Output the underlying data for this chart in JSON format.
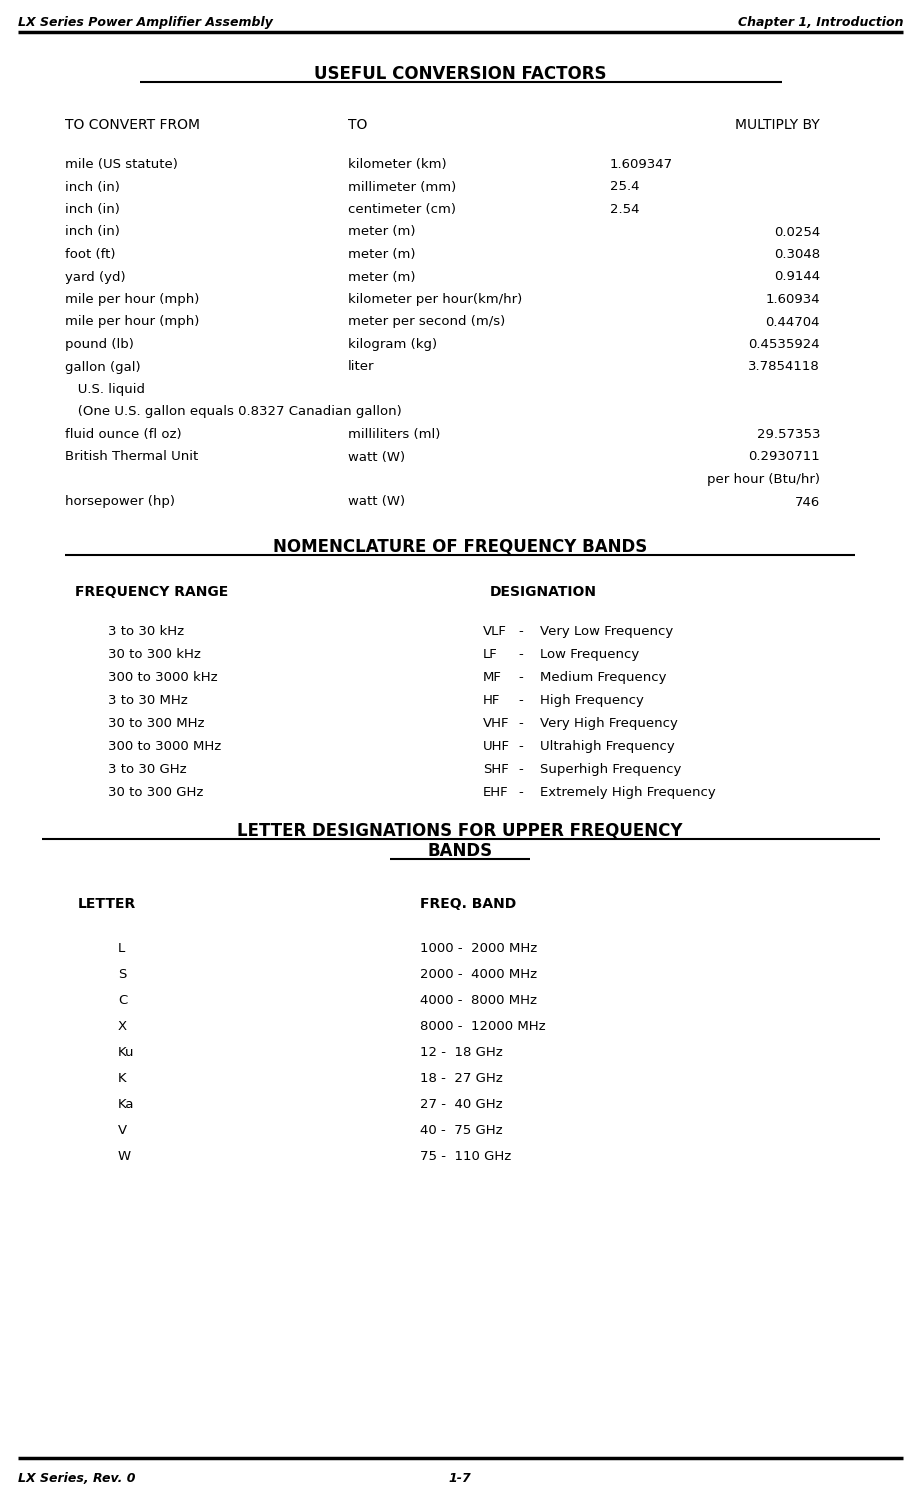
{
  "header_left": "LX Series Power Amplifier Assembly",
  "header_right": "Chapter 1, Introduction",
  "footer_left": "LX Series, Rev. 0",
  "footer_center": "1-7",
  "title1": "USEFUL CONVERSION FACTORS",
  "col1_from": "TO CONVERT FROM",
  "col1_to": "TO",
  "col1_mult": "MULTIPLY BY",
  "conversion_rows": [
    {
      "from": "mile (US statute)",
      "to": "kilometer (km)",
      "mult": "1.609347",
      "align": "left"
    },
    {
      "from": "inch (in)",
      "to": "millimeter (mm)",
      "mult": "25.4",
      "align": "left"
    },
    {
      "from": "inch (in)",
      "to": "centimeter (cm)",
      "mult": "2.54",
      "align": "left"
    },
    {
      "from": "inch (in)",
      "to": "meter (m)",
      "mult": "0.0254",
      "align": "right"
    },
    {
      "from": "foot (ft)",
      "to": "meter (m)",
      "mult": "0.3048",
      "align": "right"
    },
    {
      "from": "yard (yd)",
      "to": "meter (m)",
      "mult": "0.9144",
      "align": "right"
    },
    {
      "from": "mile per hour (mph)",
      "to": "kilometer per hour(km/hr)",
      "mult": "1.60934",
      "align": "right"
    },
    {
      "from": "mile per hour (mph)",
      "to": "meter per second (m/s)",
      "mult": "0.44704",
      "align": "right"
    },
    {
      "from": "pound (lb)",
      "to": "kilogram (kg)",
      "mult": "0.4535924",
      "align": "right"
    },
    {
      "from": "gallon (gal)",
      "to": "liter",
      "mult": "3.7854118",
      "align": "right"
    },
    {
      "from": "   U.S. liquid",
      "to": "",
      "mult": "",
      "align": ""
    },
    {
      "from": "   (One U.S. gallon equals 0.8327 Canadian gallon)",
      "to": "",
      "mult": "",
      "align": ""
    },
    {
      "from": "fluid ounce (fl oz)",
      "to": "milliliters (ml)",
      "mult": "29.57353",
      "align": "right"
    },
    {
      "from": "British Thermal Unit",
      "to": "watt (W)",
      "mult": "0.2930711",
      "align": "right"
    },
    {
      "from": "",
      "to": "",
      "mult": "per hour (Btu/hr)",
      "align": "right"
    },
    {
      "from": "horsepower (hp)",
      "to": "watt (W)",
      "mult": "746",
      "align": "right"
    }
  ],
  "title2": "NOMENCLATURE OF FREQUENCY BANDS",
  "col2_range": "FREQUENCY RANGE",
  "col2_desig": "DESIGNATION",
  "freq_rows": [
    {
      "range": "3 to 30 kHz",
      "abbr": "VLF",
      "name": "Very Low Frequency"
    },
    {
      "range": "30 to 300 kHz",
      "abbr": "LF",
      "name": "Low Frequency"
    },
    {
      "range": "300 to 3000 kHz",
      "abbr": "MF",
      "name": "Medium Frequency"
    },
    {
      "range": "3 to 30 MHz",
      "abbr": "HF",
      "name": "High Frequency"
    },
    {
      "range": "30 to 300 MHz",
      "abbr": "VHF",
      "name": "Very High Frequency"
    },
    {
      "range": "300 to 3000 MHz",
      "abbr": "UHF",
      "name": "Ultrahigh Frequency"
    },
    {
      "range": "3 to 30 GHz",
      "abbr": "SHF",
      "name": "Superhigh Frequency"
    },
    {
      "range": "30 to 300 GHz",
      "abbr": "EHF",
      "name": "Extremely High Frequency"
    }
  ],
  "title3_line1": "LETTER DESIGNATIONS FOR UPPER FREQUENCY",
  "title3_line2": "BANDS",
  "col3_letter": "LETTER",
  "col3_freq": "FREQ. BAND",
  "letter_rows": [
    {
      "letter": "L",
      "band": "1000 -  2000 MHz"
    },
    {
      "letter": "S",
      "band": "2000 -  4000 MHz"
    },
    {
      "letter": "C",
      "band": "4000 -  8000 MHz"
    },
    {
      "letter": "X",
      "band": "8000 -  12000 MHz"
    },
    {
      "letter": "Ku",
      "band": "12 -  18 GHz"
    },
    {
      "letter": "K",
      "band": "18 -  27 GHz"
    },
    {
      "letter": "Ka",
      "band": "27 -  40 GHz"
    },
    {
      "letter": "V",
      "band": "40 -  75 GHz"
    },
    {
      "letter": "W",
      "band": "75 -  110 GHz"
    }
  ],
  "bg_color": "#ffffff"
}
